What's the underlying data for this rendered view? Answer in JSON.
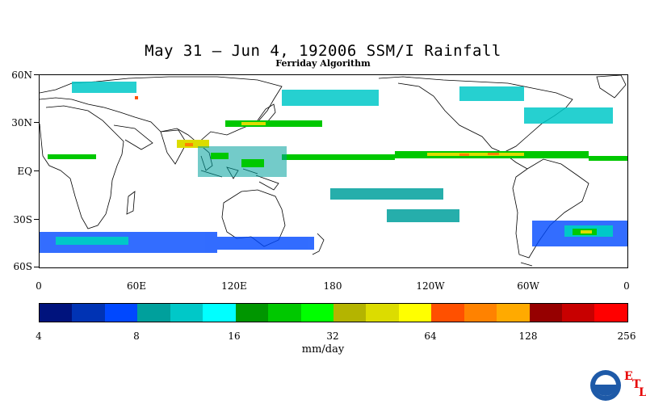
{
  "title": "May 31  –  Jun 4, 192006 SSM/I Rainfall",
  "subtitle": "Ferriday Algorithm",
  "lat_labels": [
    "60N",
    "30N",
    "EQ",
    "30S",
    "60S"
  ],
  "lon_labels": [
    "0",
    "60E",
    "120E",
    "180",
    "120W",
    "60W",
    "0"
  ],
  "colorbar": {
    "labels": [
      "4",
      "8",
      "16",
      "32",
      "64",
      "128",
      "256"
    ],
    "colors": [
      "#00137d",
      "#0033b4",
      "#0048ff",
      "#00a09c",
      "#00c8c8",
      "#00ffff",
      "#009600",
      "#00c800",
      "#00ff00",
      "#b4b400",
      "#dcdc00",
      "#ffff00",
      "#ff5000",
      "#ff8200",
      "#ffaa00",
      "#960000",
      "#c80000",
      "#ff0000"
    ],
    "unit": "mm/day"
  },
  "logo": {
    "agency": "NOAA",
    "letters": [
      "E",
      "T",
      "L"
    ]
  }
}
